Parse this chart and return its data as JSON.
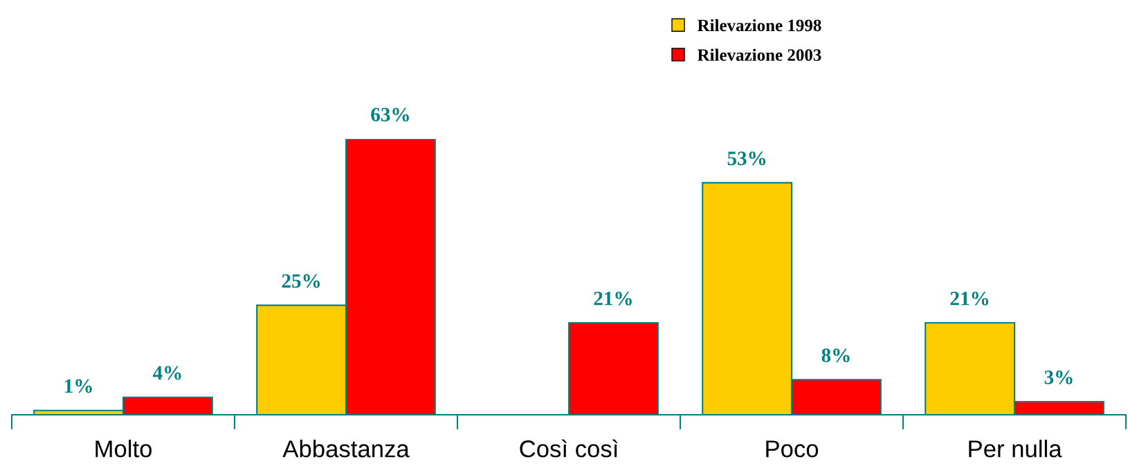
{
  "chart_data": {
    "type": "bar",
    "categories": [
      "Molto",
      "Abbastanza",
      "Così così",
      "Poco",
      "Per nulla"
    ],
    "series": [
      {
        "name": "Rilevazione 1998",
        "color": "#ffcc00",
        "values": [
          1,
          25,
          null,
          53,
          21
        ],
        "value_labels": [
          "1%",
          "25%",
          null,
          "53%",
          "21%"
        ]
      },
      {
        "name": "Rilevazione 2003",
        "color": "#ff0000",
        "values": [
          4,
          63,
          21,
          8,
          3
        ],
        "value_labels": [
          "4%",
          "63%",
          "21%",
          "8%",
          "3%"
        ]
      }
    ],
    "legend": "top right",
    "grid": false
  }
}
